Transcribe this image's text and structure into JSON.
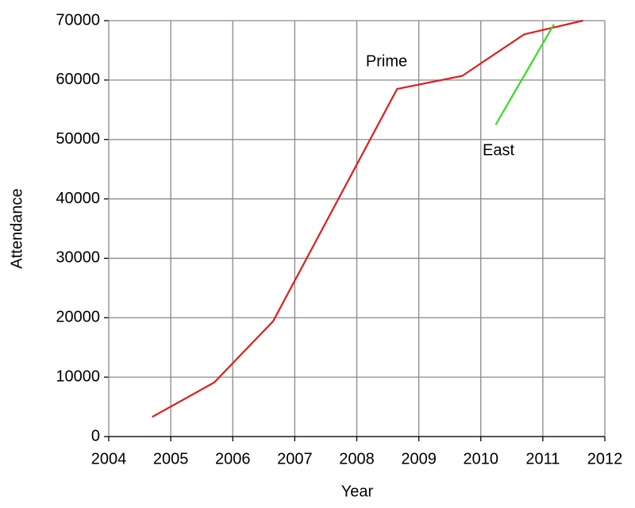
{
  "chart_data": {
    "type": "line",
    "x_label": "Year",
    "y_label": "Attendance",
    "series": [
      {
        "name": "Prime",
        "color": "#e31a1c",
        "x": [
          2004.7,
          2005.7,
          2006.65,
          2008.65,
          2009.7,
          2010.7,
          2011.65
        ],
        "values": [
          3300,
          9100,
          19400,
          58500,
          60700,
          67700,
          70000
        ]
      },
      {
        "name": "East",
        "color": "#33dd22",
        "x": [
          2010.24,
          2011.18
        ],
        "values": [
          52500,
          69400
        ]
      }
    ],
    "xlim": [
      2004,
      2012
    ],
    "xticks": [
      2004,
      2005,
      2006,
      2007,
      2008,
      2009,
      2010,
      2011,
      2012
    ],
    "ylim": [
      0,
      70000
    ],
    "yticks": [
      0,
      10000,
      20000,
      30000,
      40000,
      50000,
      60000,
      70000
    ],
    "grid": true
  }
}
